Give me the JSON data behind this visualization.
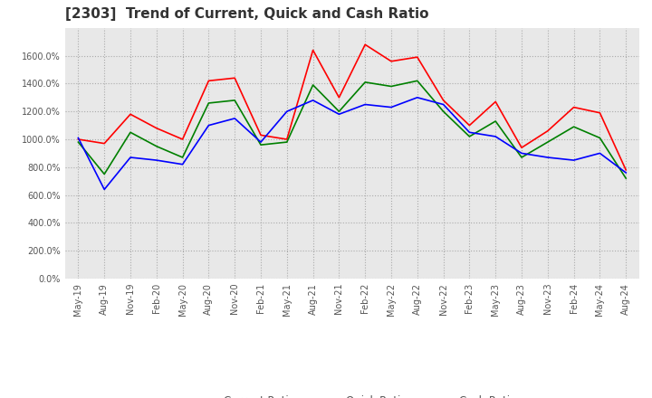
{
  "title": "[2303]  Trend of Current, Quick and Cash Ratio",
  "title_fontsize": 11,
  "x_labels": [
    "May-19",
    "Aug-19",
    "Nov-19",
    "Feb-20",
    "May-20",
    "Aug-20",
    "Nov-20",
    "Feb-21",
    "May-21",
    "Aug-21",
    "Nov-21",
    "Feb-22",
    "May-22",
    "Aug-22",
    "Nov-22",
    "Feb-23",
    "May-23",
    "Aug-23",
    "Nov-23",
    "Feb-24",
    "May-24",
    "Aug-24"
  ],
  "current_ratio": [
    1000,
    970,
    1180,
    1080,
    1000,
    1420,
    1440,
    1030,
    1000,
    1640,
    1300,
    1680,
    1560,
    1590,
    1280,
    1100,
    1270,
    940,
    1060,
    1230,
    1190,
    780
  ],
  "quick_ratio": [
    980,
    750,
    1050,
    950,
    870,
    1260,
    1280,
    960,
    980,
    1390,
    1200,
    1410,
    1380,
    1420,
    1200,
    1020,
    1130,
    870,
    980,
    1090,
    1010,
    720
  ],
  "cash_ratio": [
    1010,
    640,
    870,
    850,
    820,
    1100,
    1150,
    980,
    1200,
    1280,
    1180,
    1250,
    1230,
    1300,
    1250,
    1050,
    1020,
    900,
    870,
    850,
    900,
    760
  ],
  "current_color": "#FF0000",
  "quick_color": "#008000",
  "cash_color": "#0000FF",
  "ylim": [
    0,
    1800
  ],
  "yticks": [
    0,
    200,
    400,
    600,
    800,
    1000,
    1200,
    1400,
    1600
  ],
  "grid_color": "#aaaaaa",
  "background_color": "#ffffff",
  "plot_bg_color": "#e8e8e8",
  "legend_labels": [
    "Current Ratio",
    "Quick Ratio",
    "Cash Ratio"
  ]
}
